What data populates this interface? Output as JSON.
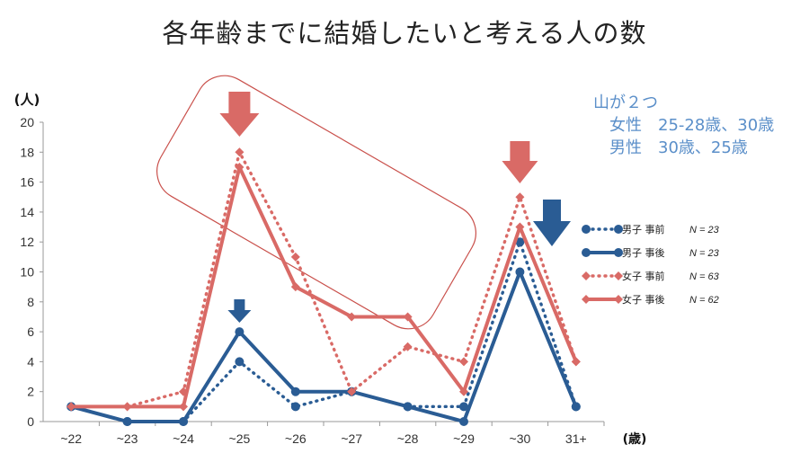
{
  "title": "各年齢までに結婚したいと考える人の数",
  "annotation": [
    "山が２つ",
    "　女性　25-28歳、30歳",
    "　男性　30歳、25歳"
  ],
  "colors": {
    "male": "#2a5c94",
    "female": "#d96a66",
    "arrow_red": "#d96a66",
    "arrow_blue": "#2a5c94",
    "annot": "#5b8fc9",
    "box": "#c9504b"
  },
  "chart_data": {
    "type": "line",
    "title": "各年齢までに結婚したいと考える人の数",
    "ylabel": "(人)",
    "xlabel": "(歳)",
    "ylim": [
      0,
      20
    ],
    "yticks": [
      0,
      2,
      4,
      6,
      8,
      10,
      12,
      14,
      16,
      18,
      20
    ],
    "categories": [
      "~22",
      "~23",
      "~24",
      "~25",
      "~26",
      "~27",
      "~28",
      "~29",
      "~30",
      "31+"
    ],
    "grid": false,
    "legend_position": "right",
    "series": [
      {
        "name": "男子 事前",
        "n_label": "N = 23",
        "style": "dotted",
        "marker": "circle",
        "color": "#2a5c94",
        "values": [
          1,
          0,
          0,
          4,
          1,
          2,
          1,
          1,
          12,
          1
        ]
      },
      {
        "name": "男子 事後",
        "n_label": "N = 23",
        "style": "solid",
        "marker": "circle",
        "color": "#2a5c94",
        "values": [
          1,
          0,
          0,
          6,
          2,
          2,
          1,
          0,
          10,
          1
        ]
      },
      {
        "name": "女子 事前",
        "n_label": "N = 63",
        "style": "dotted",
        "marker": "diamond",
        "color": "#d96a66",
        "values": [
          1,
          1,
          2,
          18,
          11,
          2,
          5,
          4,
          15,
          4
        ]
      },
      {
        "name": "女子 事後",
        "n_label": "N = 62",
        "style": "solid",
        "marker": "diamond",
        "color": "#d96a66",
        "values": [
          1,
          1,
          1,
          17,
          9,
          7,
          7,
          2,
          13,
          4
        ]
      }
    ]
  }
}
